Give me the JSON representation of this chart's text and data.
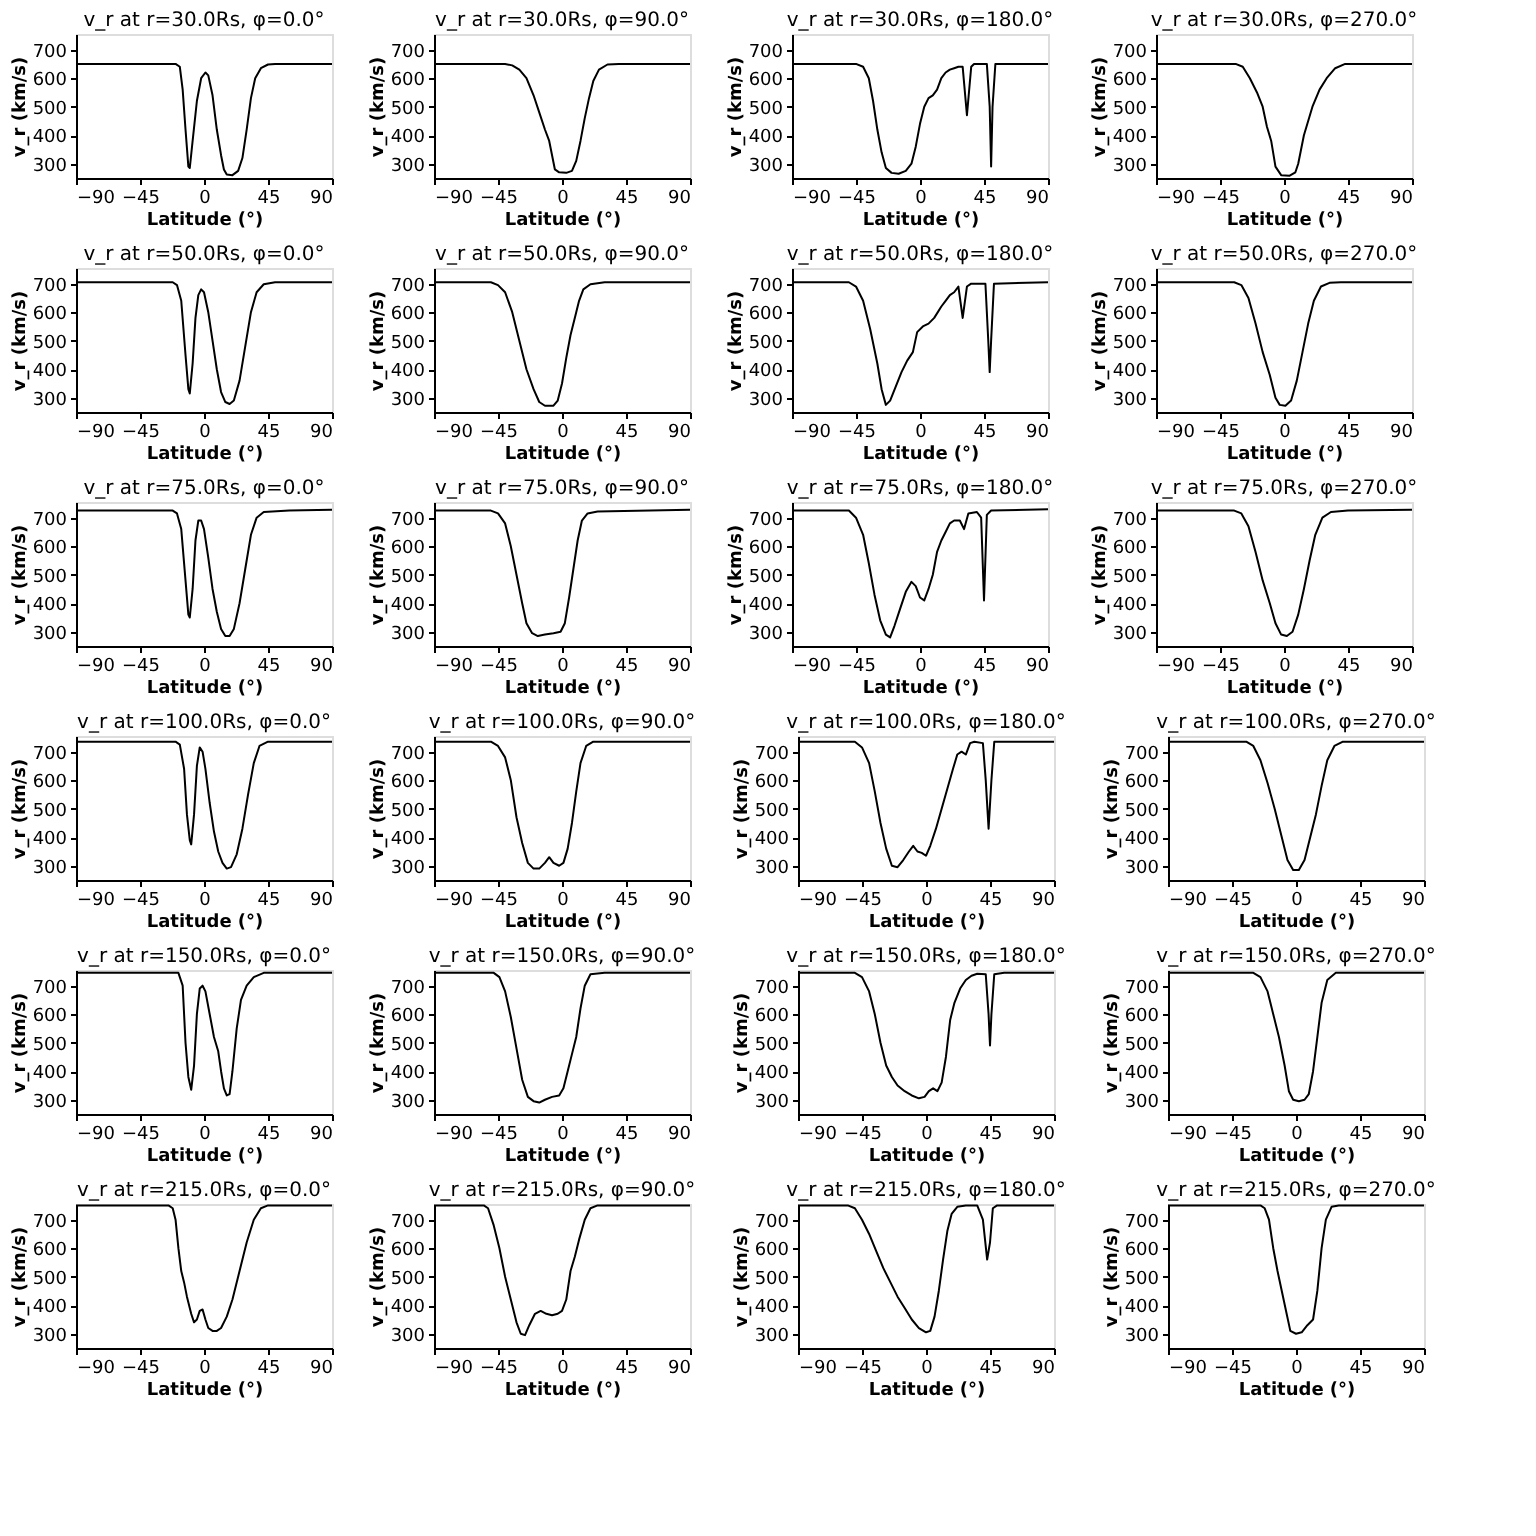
{
  "chart_data": [
    {
      "type": "line",
      "title": "v_r at r=30.0Rs, φ=0.0°",
      "xlabel": "Latitude (°)",
      "ylabel": "v_r (km/s)",
      "color": "#000000",
      "xlim": [
        -90,
        90
      ],
      "xticks": [
        -90,
        -45,
        0,
        45,
        90
      ],
      "ylim": [
        250,
        755
      ],
      "yticks": [
        300,
        400,
        500,
        600,
        700
      ],
      "x": [
        -90,
        -20,
        -17,
        -15,
        -13,
        -11,
        -10,
        -8,
        -5,
        -2,
        1,
        3,
        6,
        9,
        12,
        14,
        16,
        20,
        24,
        27,
        30,
        33,
        36,
        40,
        45,
        50,
        90
      ],
      "values": [
        650,
        650,
        640,
        560,
        420,
        290,
        285,
        380,
        520,
        600,
        620,
        610,
        540,
        420,
        330,
        280,
        262,
        260,
        275,
        320,
        420,
        530,
        600,
        635,
        648,
        650,
        650
      ]
    },
    {
      "type": "line",
      "title": "v_r at r=30.0Rs, φ=90.0°",
      "xlabel": "Latitude (°)",
      "ylabel": "v_r (km/s)",
      "color": "#000000",
      "xlim": [
        -90,
        90
      ],
      "xticks": [
        -90,
        -45,
        0,
        45,
        90
      ],
      "ylim": [
        250,
        755
      ],
      "yticks": [
        300,
        400,
        500,
        600,
        700
      ],
      "x": [
        -90,
        -40,
        -35,
        -30,
        -25,
        -20,
        -16,
        -12,
        -9,
        -7,
        -5,
        -2,
        3,
        7,
        10,
        13,
        16,
        19,
        22,
        26,
        32,
        40,
        90
      ],
      "values": [
        650,
        650,
        645,
        630,
        600,
        540,
        480,
        420,
        380,
        330,
        280,
        270,
        268,
        275,
        310,
        380,
        460,
        530,
        590,
        630,
        648,
        650,
        650
      ]
    },
    {
      "type": "line",
      "title": "v_r at r=30.0Rs, φ=180.0°",
      "xlabel": "Latitude (°)",
      "ylabel": "v_r (km/s)",
      "color": "#000000",
      "xlim": [
        -90,
        90
      ],
      "xticks": [
        -90,
        -45,
        0,
        45,
        90
      ],
      "ylim": [
        250,
        755
      ],
      "yticks": [
        300,
        400,
        500,
        600,
        700
      ],
      "x": [
        -90,
        -45,
        -40,
        -36,
        -33,
        -30,
        -27,
        -24,
        -20,
        -15,
        -10,
        -6,
        -3,
        0,
        3,
        6,
        9,
        12,
        15,
        18,
        21,
        24,
        27,
        30,
        33,
        36,
        38,
        47,
        49,
        50,
        51,
        53,
        90
      ],
      "values": [
        650,
        650,
        640,
        600,
        520,
        420,
        340,
        285,
        268,
        265,
        275,
        300,
        360,
        440,
        500,
        530,
        540,
        560,
        600,
        620,
        630,
        635,
        640,
        640,
        470,
        640,
        650,
        650,
        500,
        290,
        500,
        650,
        650
      ]
    },
    {
      "type": "line",
      "title": "v_r at r=30.0Rs, φ=270.0°",
      "xlabel": "Latitude (°)",
      "ylabel": "v_r (km/s)",
      "color": "#000000",
      "xlim": [
        -90,
        90
      ],
      "xticks": [
        -90,
        -45,
        0,
        45,
        90
      ],
      "ylim": [
        250,
        755
      ],
      "yticks": [
        300,
        400,
        500,
        600,
        700
      ],
      "x": [
        -90,
        -34,
        -29,
        -24,
        -19,
        -15,
        -12,
        -9,
        -6,
        -2,
        4,
        8,
        10,
        14,
        20,
        25,
        30,
        36,
        43,
        90
      ],
      "values": [
        650,
        650,
        640,
        600,
        550,
        500,
        430,
        380,
        290,
        260,
        258,
        270,
        300,
        400,
        500,
        560,
        600,
        635,
        650,
        650
      ]
    },
    {
      "type": "line",
      "title": "v_r at r=50.0Rs, φ=0.0°",
      "xlabel": "Latitude (°)",
      "ylabel": "v_r (km/s)",
      "color": "#000000",
      "xlim": [
        -90,
        90
      ],
      "xticks": [
        -90,
        -45,
        0,
        45,
        90
      ],
      "ylim": [
        250,
        755
      ],
      "yticks": [
        300,
        400,
        500,
        600,
        700
      ],
      "x": [
        -90,
        -22,
        -19,
        -16,
        -13,
        -11,
        -10,
        -8,
        -6,
        -4,
        -2,
        0,
        3,
        6,
        9,
        12,
        15,
        18,
        21,
        25,
        29,
        33,
        37,
        42,
        50,
        90
      ],
      "values": [
        705,
        705,
        695,
        640,
        450,
        330,
        315,
        420,
        580,
        660,
        680,
        670,
        600,
        500,
        400,
        320,
        285,
        278,
        290,
        360,
        480,
        600,
        670,
        698,
        705,
        705
      ]
    },
    {
      "type": "line",
      "title": "v_r at r=50.0Rs, φ=90.0°",
      "xlabel": "Latitude (°)",
      "ylabel": "v_r (km/s)",
      "color": "#000000",
      "xlim": [
        -90,
        90
      ],
      "xticks": [
        -90,
        -45,
        0,
        45,
        90
      ],
      "ylim": [
        250,
        755
      ],
      "yticks": [
        300,
        400,
        500,
        600,
        700
      ],
      "x": [
        -90,
        -50,
        -45,
        -40,
        -35,
        -30,
        -25,
        -20,
        -16,
        -12,
        -6,
        -3,
        0,
        3,
        6,
        9,
        12,
        15,
        20,
        30,
        90
      ],
      "values": [
        705,
        705,
        695,
        670,
        600,
        500,
        400,
        330,
        285,
        272,
        272,
        290,
        350,
        440,
        520,
        580,
        640,
        680,
        698,
        705,
        705
      ]
    },
    {
      "type": "line",
      "title": "v_r at r=50.0Rs, φ=180.0°",
      "xlabel": "Latitude (°)",
      "ylabel": "v_r (km/s)",
      "color": "#000000",
      "xlim": [
        -90,
        90
      ],
      "xticks": [
        -90,
        -45,
        0,
        45,
        90
      ],
      "ylim": [
        250,
        755
      ],
      "yticks": [
        300,
        400,
        500,
        600,
        700
      ],
      "x": [
        -90,
        -50,
        -45,
        -40,
        -35,
        -30,
        -27,
        -24,
        -21,
        -17,
        -13,
        -9,
        -5,
        -2,
        2,
        6,
        10,
        15,
        18,
        21,
        24,
        27,
        30,
        33,
        36,
        46,
        48,
        49,
        50,
        52,
        90
      ],
      "values": [
        705,
        705,
        690,
        640,
        540,
        420,
        330,
        275,
        290,
        340,
        390,
        430,
        460,
        530,
        550,
        560,
        580,
        620,
        640,
        660,
        670,
        690,
        580,
        690,
        700,
        700,
        500,
        390,
        500,
        700,
        705
      ]
    },
    {
      "type": "line",
      "title": "v_r at r=50.0Rs, φ=270.0°",
      "xlabel": "Latitude (°)",
      "ylabel": "v_r (km/s)",
      "color": "#000000",
      "xlim": [
        -90,
        90
      ],
      "xticks": [
        -90,
        -45,
        0,
        45,
        90
      ],
      "ylim": [
        250,
        755
      ],
      "yticks": [
        300,
        400,
        500,
        600,
        700
      ],
      "x": [
        -90,
        -35,
        -30,
        -25,
        -20,
        -15,
        -10,
        -6,
        -3,
        1,
        5,
        9,
        13,
        17,
        21,
        26,
        32,
        40,
        90
      ],
      "values": [
        705,
        705,
        695,
        650,
        560,
        460,
        380,
        300,
        275,
        272,
        290,
        360,
        460,
        560,
        640,
        690,
        703,
        705,
        705
      ]
    },
    {
      "type": "line",
      "title": "v_r at r=75.0Rs, φ=0.0°",
      "xlabel": "Latitude (°)",
      "ylabel": "v_r (km/s)",
      "color": "#000000",
      "xlim": [
        -90,
        90
      ],
      "xticks": [
        -90,
        -45,
        0,
        45,
        90
      ],
      "ylim": [
        250,
        755
      ],
      "yticks": [
        300,
        400,
        500,
        600,
        700
      ],
      "x": [
        -90,
        -22,
        -19,
        -16,
        -13,
        -11,
        -10,
        -8,
        -6,
        -4,
        -2,
        0,
        3,
        6,
        9,
        12,
        15,
        18,
        21,
        25,
        29,
        33,
        37,
        42,
        60,
        90
      ],
      "values": [
        725,
        725,
        715,
        660,
        480,
        360,
        350,
        450,
        620,
        690,
        690,
        660,
        560,
        450,
        370,
        310,
        285,
        285,
        310,
        400,
        520,
        640,
        700,
        720,
        725,
        728
      ]
    },
    {
      "type": "line",
      "title": "v_r at r=75.0Rs, φ=90.0°",
      "xlabel": "Latitude (°)",
      "ylabel": "v_r (km/s)",
      "color": "#000000",
      "xlim": [
        -90,
        90
      ],
      "xticks": [
        -90,
        -45,
        0,
        45,
        90
      ],
      "ylim": [
        250,
        755
      ],
      "yticks": [
        300,
        400,
        500,
        600,
        700
      ],
      "x": [
        -90,
        -50,
        -45,
        -40,
        -36,
        -32,
        -28,
        -25,
        -21,
        -17,
        -12,
        -6,
        -1,
        2,
        5,
        8,
        11,
        14,
        18,
        25,
        90
      ],
      "values": [
        725,
        725,
        715,
        680,
        600,
        500,
        400,
        330,
        295,
        285,
        290,
        295,
        300,
        330,
        420,
        520,
        620,
        690,
        715,
        722,
        728
      ]
    },
    {
      "type": "line",
      "title": "v_r at r=75.0Rs, φ=180.0°",
      "xlabel": "Latitude (°)",
      "ylabel": "v_r (km/s)",
      "color": "#000000",
      "xlim": [
        -90,
        90
      ],
      "xticks": [
        -90,
        -45,
        0,
        45,
        90
      ],
      "ylim": [
        250,
        755
      ],
      "yticks": [
        300,
        400,
        500,
        600,
        700
      ],
      "x": [
        -90,
        -50,
        -45,
        -40,
        -36,
        -32,
        -28,
        -24,
        -21,
        -18,
        -14,
        -10,
        -6,
        -3,
        0,
        3,
        6,
        9,
        12,
        15,
        18,
        21,
        24,
        28,
        31,
        34,
        40,
        43,
        45,
        47,
        50,
        90
      ],
      "values": [
        725,
        725,
        700,
        640,
        540,
        430,
        340,
        290,
        280,
        320,
        380,
        440,
        475,
        460,
        420,
        410,
        450,
        500,
        580,
        620,
        650,
        680,
        690,
        690,
        660,
        715,
        720,
        700,
        410,
        710,
        725,
        730
      ]
    },
    {
      "type": "line",
      "title": "v_r at r=75.0Rs, φ=270.0°",
      "xlabel": "Latitude (°)",
      "ylabel": "v_r (km/s)",
      "color": "#000000",
      "xlim": [
        -90,
        90
      ],
      "xticks": [
        -90,
        -45,
        0,
        45,
        90
      ],
      "ylim": [
        250,
        755
      ],
      "yticks": [
        300,
        400,
        500,
        600,
        700
      ],
      "x": [
        -90,
        -35,
        -30,
        -25,
        -20,
        -15,
        -10,
        -6,
        -2,
        2,
        6,
        10,
        14,
        18,
        22,
        27,
        33,
        45,
        90
      ],
      "values": [
        725,
        725,
        715,
        670,
        580,
        480,
        400,
        330,
        290,
        285,
        300,
        360,
        450,
        550,
        640,
        700,
        720,
        725,
        728
      ]
    },
    {
      "type": "line",
      "title": "v_r at r=100.0Rs, φ=0.0°",
      "xlabel": "Latitude (°)",
      "ylabel": "v_r (km/s)",
      "color": "#000000",
      "xlim": [
        -90,
        90
      ],
      "xticks": [
        -90,
        -45,
        0,
        45,
        90
      ],
      "ylim": [
        250,
        755
      ],
      "yticks": [
        300,
        400,
        500,
        600,
        700
      ],
      "x": [
        -90,
        -20,
        -17,
        -14,
        -12,
        -10,
        -9,
        -7,
        -5,
        -3,
        -1,
        1,
        4,
        7,
        10,
        13,
        16,
        19,
        23,
        27,
        31,
        35,
        39,
        45,
        90
      ],
      "values": [
        735,
        735,
        725,
        640,
        480,
        390,
        375,
        480,
        650,
        715,
        700,
        640,
        520,
        420,
        350,
        310,
        290,
        295,
        340,
        430,
        550,
        660,
        720,
        735,
        735
      ]
    },
    {
      "type": "line",
      "title": "v_r at r=100.0Rs, φ=90.0°",
      "xlabel": "Latitude (°)",
      "ylabel": "v_r (km/s)",
      "color": "#000000",
      "xlim": [
        -90,
        90
      ],
      "xticks": [
        -90,
        -45,
        0,
        45,
        90
      ],
      "ylim": [
        250,
        755
      ],
      "yticks": [
        300,
        400,
        500,
        600,
        700
      ],
      "x": [
        -90,
        -50,
        -45,
        -40,
        -36,
        -32,
        -28,
        -24,
        -20,
        -16,
        -12,
        -9,
        -6,
        -2,
        1,
        4,
        7,
        10,
        13,
        17,
        22,
        90
      ],
      "values": [
        735,
        735,
        720,
        680,
        600,
        470,
        380,
        310,
        290,
        290,
        310,
        330,
        310,
        300,
        310,
        360,
        450,
        560,
        660,
        720,
        735,
        735
      ]
    },
    {
      "type": "line",
      "title": "v_r at r=100.0Rs, φ=180.0°",
      "xlabel": "Latitude (°)",
      "ylabel": "v_r (km/s)",
      "color": "#000000",
      "xlim": [
        -90,
        90
      ],
      "xticks": [
        -90,
        -45,
        0,
        45,
        90
      ],
      "ylim": [
        250,
        755
      ],
      "yticks": [
        300,
        400,
        500,
        600,
        700
      ],
      "x": [
        -90,
        -50,
        -45,
        -40,
        -36,
        -32,
        -28,
        -24,
        -20,
        -16,
        -12,
        -9,
        -6,
        -3,
        0,
        3,
        7,
        11,
        15,
        19,
        22,
        25,
        28,
        31,
        34,
        40,
        42,
        44,
        46,
        48,
        90
      ],
      "values": [
        735,
        735,
        715,
        660,
        560,
        450,
        360,
        300,
        295,
        320,
        350,
        370,
        350,
        345,
        335,
        370,
        430,
        500,
        570,
        640,
        690,
        700,
        690,
        730,
        735,
        730,
        600,
        430,
        600,
        735,
        735
      ]
    },
    {
      "type": "line",
      "title": "v_r at r=100.0Rs, φ=270.0°",
      "xlabel": "Latitude (°)",
      "ylabel": "v_r (km/s)",
      "color": "#000000",
      "xlim": [
        -90,
        90
      ],
      "xticks": [
        -90,
        -45,
        0,
        45,
        90
      ],
      "ylim": [
        250,
        755
      ],
      "yticks": [
        300,
        400,
        500,
        600,
        700
      ],
      "x": [
        -90,
        -35,
        -30,
        -25,
        -20,
        -15,
        -10,
        -6,
        -2,
        2,
        6,
        10,
        14,
        18,
        22,
        27,
        33,
        90
      ],
      "values": [
        735,
        735,
        720,
        670,
        590,
        500,
        400,
        320,
        285,
        285,
        320,
        400,
        480,
        580,
        670,
        720,
        735,
        735
      ]
    },
    {
      "type": "line",
      "title": "v_r at r=150.0Rs, φ=0.0°",
      "xlabel": "Latitude (°)",
      "ylabel": "v_r (km/s)",
      "color": "#000000",
      "xlim": [
        -90,
        90
      ],
      "xticks": [
        -90,
        -45,
        0,
        45,
        90
      ],
      "ylim": [
        250,
        755
      ],
      "yticks": [
        300,
        400,
        500,
        600,
        700
      ],
      "x": [
        -90,
        -18,
        -15,
        -13,
        -11,
        -9,
        -7,
        -5,
        -3,
        -1,
        1,
        4,
        7,
        10,
        12,
        14,
        16,
        18,
        20,
        23,
        26,
        30,
        35,
        42,
        90
      ],
      "values": [
        745,
        745,
        700,
        500,
        380,
        335,
        420,
        600,
        690,
        700,
        680,
        600,
        520,
        470,
        400,
        340,
        315,
        320,
        400,
        550,
        650,
        700,
        730,
        745,
        745
      ]
    },
    {
      "type": "line",
      "title": "v_r at r=150.0Rs, φ=90.0°",
      "xlabel": "Latitude (°)",
      "ylabel": "v_r (km/s)",
      "color": "#000000",
      "xlim": [
        -90,
        90
      ],
      "xticks": [
        -90,
        -45,
        0,
        45,
        90
      ],
      "ylim": [
        250,
        755
      ],
      "yticks": [
        300,
        400,
        500,
        600,
        700
      ],
      "x": [
        -90,
        -48,
        -44,
        -40,
        -36,
        -32,
        -28,
        -24,
        -20,
        -16,
        -12,
        -7,
        -2,
        1,
        4,
        7,
        10,
        13,
        16,
        20,
        30,
        90
      ],
      "values": [
        745,
        745,
        730,
        680,
        590,
        480,
        370,
        310,
        295,
        290,
        300,
        310,
        315,
        340,
        400,
        460,
        520,
        620,
        700,
        740,
        745,
        745
      ]
    },
    {
      "type": "line",
      "title": "v_r at r=150.0Rs, φ=180.0°",
      "xlabel": "Latitude (°)",
      "ylabel": "v_r (km/s)",
      "color": "#000000",
      "xlim": [
        -90,
        90
      ],
      "xticks": [
        -90,
        -45,
        0,
        45,
        90
      ],
      "ylim": [
        250,
        755
      ],
      "yticks": [
        300,
        400,
        500,
        600,
        700
      ],
      "x": [
        -90,
        -50,
        -45,
        -40,
        -36,
        -32,
        -28,
        -24,
        -20,
        -15,
        -10,
        -5,
        -1,
        2,
        5,
        8,
        11,
        14,
        17,
        20,
        24,
        28,
        32,
        36,
        42,
        44,
        45,
        46,
        48,
        55,
        90
      ],
      "values": [
        745,
        745,
        730,
        680,
        600,
        500,
        420,
        380,
        350,
        330,
        315,
        305,
        310,
        330,
        340,
        330,
        360,
        450,
        580,
        640,
        690,
        720,
        735,
        742,
        740,
        600,
        490,
        600,
        740,
        745,
        745
      ]
    },
    {
      "type": "line",
      "title": "v_r at r=150.0Rs, φ=270.0°",
      "xlabel": "Latitude (°)",
      "ylabel": "v_r (km/s)",
      "color": "#000000",
      "xlim": [
        -90,
        90
      ],
      "xticks": [
        -90,
        -45,
        0,
        45,
        90
      ],
      "ylim": [
        250,
        755
      ],
      "yticks": [
        300,
        400,
        500,
        600,
        700
      ],
      "x": [
        -90,
        -30,
        -25,
        -20,
        -16,
        -12,
        -8,
        -5,
        -2,
        2,
        6,
        9,
        12,
        15,
        18,
        22,
        28,
        90
      ],
      "values": [
        745,
        745,
        730,
        680,
        600,
        520,
        420,
        330,
        300,
        295,
        300,
        320,
        400,
        520,
        640,
        720,
        745,
        745
      ]
    },
    {
      "type": "line",
      "title": "v_r at r=215.0Rs, φ=0.0°",
      "xlabel": "Latitude (°)",
      "ylabel": "v_r (km/s)",
      "color": "#000000",
      "xlim": [
        -90,
        90
      ],
      "xticks": [
        -90,
        -45,
        0,
        45,
        90
      ],
      "ylim": [
        250,
        755
      ],
      "yticks": [
        300,
        400,
        500,
        600,
        700
      ],
      "x": [
        -90,
        -25,
        -22,
        -20,
        -18,
        -16,
        -14,
        -12,
        -9,
        -7,
        -5,
        -3,
        -1,
        1,
        3,
        6,
        9,
        12,
        16,
        20,
        25,
        30,
        35,
        40,
        45,
        90
      ],
      "values": [
        750,
        750,
        740,
        700,
        600,
        520,
        480,
        430,
        370,
        340,
        350,
        380,
        385,
        350,
        320,
        310,
        310,
        320,
        360,
        420,
        520,
        620,
        700,
        740,
        750,
        750
      ]
    },
    {
      "type": "line",
      "title": "v_r at r=215.0Rs, φ=90.0°",
      "xlabel": "Latitude (°)",
      "ylabel": "v_r (km/s)",
      "color": "#000000",
      "xlim": [
        -90,
        90
      ],
      "xticks": [
        -90,
        -45,
        0,
        45,
        90
      ],
      "ylim": [
        250,
        755
      ],
      "yticks": [
        300,
        400,
        500,
        600,
        700
      ],
      "x": [
        -90,
        -55,
        -52,
        -48,
        -44,
        -40,
        -36,
        -32,
        -29,
        -26,
        -23,
        -19,
        -15,
        -11,
        -7,
        -3,
        0,
        3,
        6,
        9,
        12,
        16,
        20,
        25,
        90
      ],
      "values": [
        750,
        750,
        740,
        680,
        600,
        500,
        420,
        340,
        300,
        295,
        330,
        370,
        380,
        370,
        365,
        370,
        380,
        420,
        520,
        570,
        630,
        700,
        740,
        750,
        750
      ]
    },
    {
      "type": "line",
      "title": "v_r at r=215.0Rs, φ=180.0°",
      "xlabel": "Latitude (°)",
      "ylabel": "v_r (km/s)",
      "color": "#000000",
      "xlim": [
        -90,
        90
      ],
      "xticks": [
        -90,
        -45,
        0,
        45,
        90
      ],
      "ylim": [
        250,
        755
      ],
      "yticks": [
        300,
        400,
        500,
        600,
        700
      ],
      "x": [
        -90,
        -55,
        -50,
        -45,
        -40,
        -35,
        -30,
        -25,
        -20,
        -15,
        -10,
        -5,
        0,
        3,
        6,
        9,
        12,
        15,
        18,
        22,
        28,
        36,
        40,
        43,
        45,
        47,
        50,
        90
      ],
      "values": [
        750,
        750,
        740,
        700,
        650,
        590,
        530,
        480,
        430,
        390,
        350,
        320,
        305,
        310,
        360,
        450,
        560,
        660,
        720,
        745,
        750,
        750,
        700,
        560,
        620,
        740,
        750,
        750
      ]
    },
    {
      "type": "line",
      "title": "v_r at r=215.0Rs, φ=270.0°",
      "xlabel": "Latitude (°)",
      "ylabel": "v_r (km/s)",
      "color": "#000000",
      "xlim": [
        -90,
        90
      ],
      "xticks": [
        -90,
        -45,
        0,
        45,
        90
      ],
      "ylim": [
        250,
        755
      ],
      "yticks": [
        300,
        400,
        500,
        600,
        700
      ],
      "x": [
        -90,
        -25,
        -22,
        -19,
        -16,
        -13,
        -10,
        -7,
        -4,
        0,
        4,
        8,
        12,
        15,
        18,
        21,
        25,
        30,
        90
      ],
      "values": [
        750,
        750,
        740,
        700,
        600,
        520,
        450,
        380,
        310,
        300,
        305,
        330,
        350,
        450,
        600,
        700,
        745,
        750,
        750
      ]
    }
  ]
}
